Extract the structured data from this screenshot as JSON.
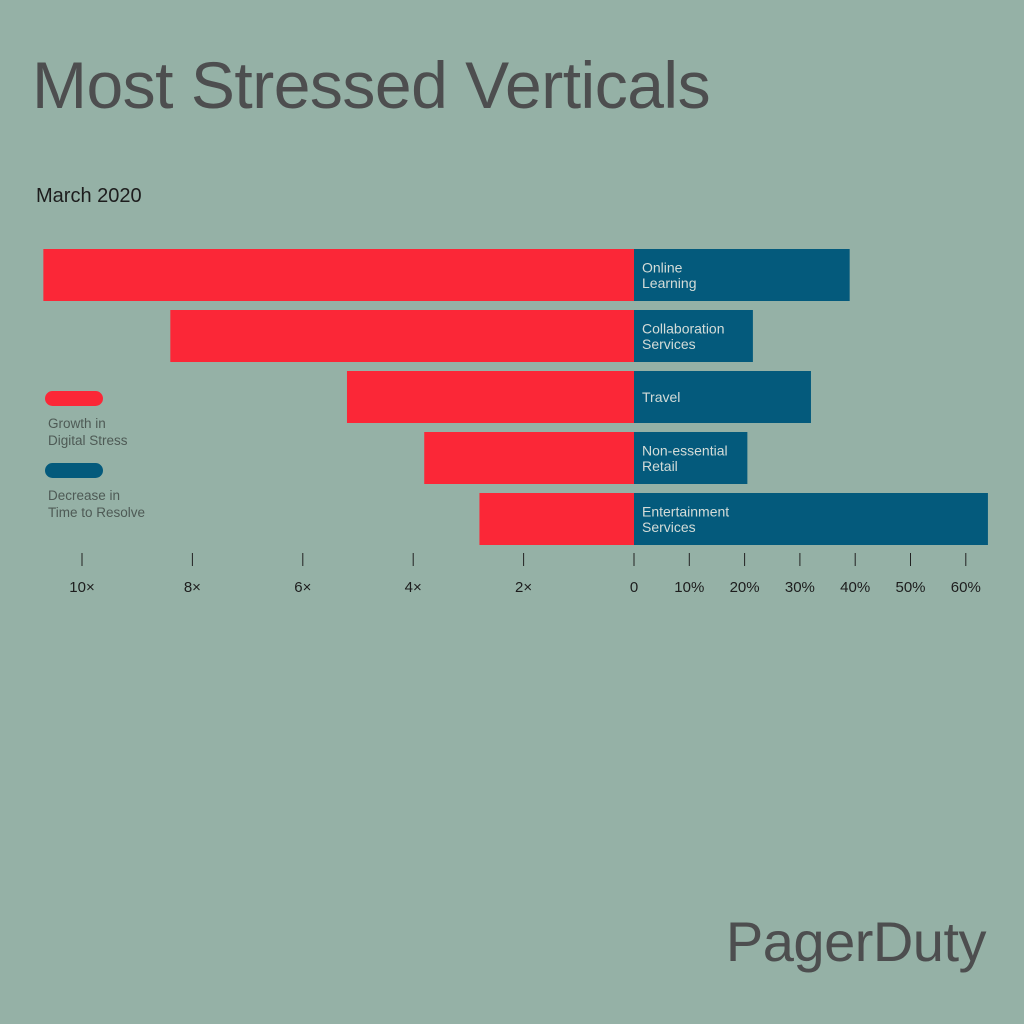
{
  "title": "Most Stressed Verticals",
  "subtitle": "March 2020",
  "brand": "PagerDuty",
  "colors": {
    "background": "#95b1a6",
    "stress": "#fb2737",
    "resolve": "#045a7c",
    "title": "#4d4e4f"
  },
  "legend": [
    {
      "line1": "Growth in",
      "line2": "Digital Stress",
      "color": "#fb2737"
    },
    {
      "line1": "Decrease in",
      "line2": "Time to Resolve",
      "color": "#045a7c"
    }
  ],
  "chart_data": {
    "type": "bar",
    "orientation": "horizontal-diverging",
    "title": "Most Stressed Verticals",
    "subtitle": "March 2020",
    "categories": [
      [
        "Online",
        "Learning"
      ],
      [
        "Collaboration",
        "Services"
      ],
      [
        "Travel"
      ],
      [
        "Non-essential",
        "Retail"
      ],
      [
        "Entertainment",
        "Services"
      ]
    ],
    "series": [
      {
        "name": "Growth in Digital Stress",
        "side": "left",
        "unit": "×",
        "values": [
          10.7,
          8.4,
          5.2,
          3.8,
          2.8
        ]
      },
      {
        "name": "Decrease in Time to Resolve",
        "side": "right",
        "unit": "%",
        "values": [
          39,
          21.5,
          32,
          20.5,
          64
        ]
      }
    ],
    "left_axis": {
      "ticks": [
        10,
        8,
        6,
        4,
        2,
        0
      ],
      "labels": [
        "10×",
        "8×",
        "6×",
        "4×",
        "2×",
        "0"
      ],
      "range": [
        0,
        10.7
      ]
    },
    "right_axis": {
      "ticks": [
        10,
        20,
        30,
        40,
        50,
        60
      ],
      "labels": [
        "10%",
        "20%",
        "30%",
        "40%",
        "50%",
        "60%"
      ],
      "range": [
        0,
        64
      ]
    },
    "grid": false,
    "legend_position": "left"
  }
}
